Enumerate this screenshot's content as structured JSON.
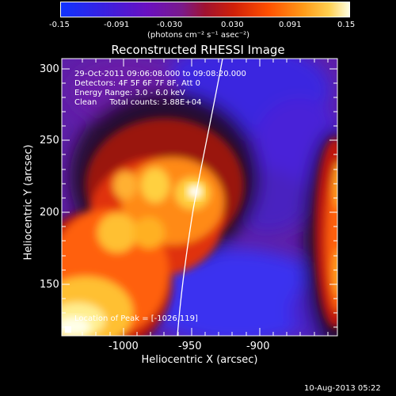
{
  "colorbar": {
    "ticks": [
      "-0.15",
      "-0.091",
      "-0.030",
      "0.030",
      "0.091",
      "0.15"
    ],
    "units_label": "(photons cm⁻² s⁻¹ asec⁻²)",
    "colors": [
      "#1033ff",
      "#5a10d0",
      "#7a1a8a",
      "#c01808",
      "#ff5000",
      "#ffc020",
      "#ffffe0"
    ]
  },
  "title": "Reconstructed RHESSI Image",
  "info_lines": [
    "29-Oct-2011 09:06:08.000 to 09:08:20.000",
    "Detectors: 4F 5F 6F 7F 8F, Att 0",
    "Energy Range: 3.0 - 6.0 keV",
    "Clean     Total counts: 3.88E+04"
  ],
  "peak_label": "Location of Peak = [-1026,119]",
  "axes": {
    "xlabel": "Heliocentric X (arcsec)",
    "ylabel": "Heliocentric Y (arcsec)",
    "xticks": [
      "-1000",
      "-950",
      "-900"
    ],
    "yticks": [
      "300",
      "250",
      "200",
      "150"
    ],
    "xlim": [
      -1045,
      -945
    ],
    "ylim": [
      112,
      305
    ]
  },
  "footer_date": "10-Aug-2013 05:22"
}
